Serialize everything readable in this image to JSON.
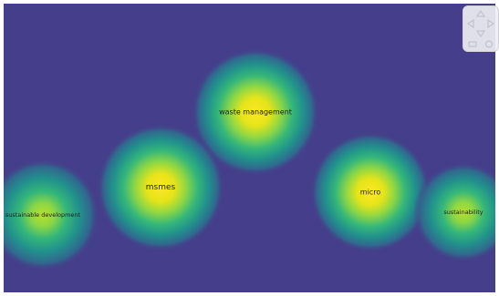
{
  "diagram": {
    "background_color": "#453e8a",
    "terms": [
      {
        "label": "waste management",
        "density": 1.0
      },
      {
        "label": "msmes",
        "density": 1.0
      },
      {
        "label": "micro",
        "density": 0.95
      },
      {
        "label": "sustainable development",
        "density": 0.75
      },
      {
        "label": "sustainability",
        "density": 0.7
      }
    ]
  },
  "controls": {
    "icons": [
      "pan-up-icon",
      "pan-left-icon",
      "pan-right-icon",
      "pan-down-icon",
      "zoom-out-icon",
      "zoom-in-icon"
    ]
  }
}
